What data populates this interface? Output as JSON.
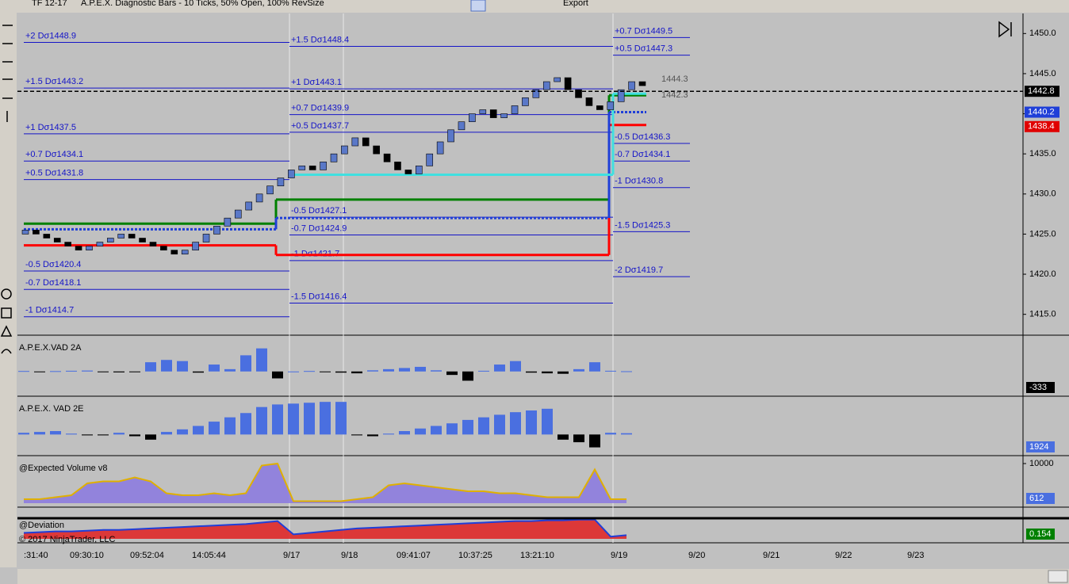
{
  "toolbar": {
    "instrument": "TF 12-17",
    "chart_title": "A.P.E.X. Diagnostic Bars - 10 Ticks, 50% Open, 100% RevSize",
    "export": "Export"
  },
  "chart_data": {
    "type": "renko",
    "ylim": [
      1412.4,
      1452.5
    ],
    "yticks": [
      {
        "value": 1450,
        "label": "1450.0"
      },
      {
        "value": 1445,
        "label": "1445.0"
      },
      {
        "value": 1440,
        "label": "1440.0"
      },
      {
        "value": 1435,
        "label": "1435.0"
      },
      {
        "value": 1430,
        "label": "1430.0"
      },
      {
        "value": 1425,
        "label": "1425.0"
      },
      {
        "value": 1420,
        "label": "1420.0"
      },
      {
        "value": 1415,
        "label": "1415.0"
      }
    ],
    "values": [
      1425.5,
      1425,
      1424.5,
      1424,
      1423.5,
      1423,
      1423.5,
      1424,
      1424.5,
      1425,
      1424.5,
      1424,
      1423.5,
      1423,
      1422.5,
      1423,
      1424,
      1425,
      1426,
      1427,
      1428,
      1429,
      1430,
      1431,
      1432,
      1433,
      1433.5,
      1433,
      1434,
      1435,
      1436,
      1437,
      1436,
      1435,
      1434,
      1433,
      1432.5,
      1433.5,
      1435,
      1436.5,
      1438,
      1439,
      1440,
      1440.5,
      1439.5,
      1440,
      1441,
      1442,
      1443,
      1444,
      1444.5,
      1443,
      1442,
      1441,
      1440.5,
      1441.5,
      1443,
      1444,
      1443.5
    ],
    "up_color": "#5a78c8",
    "down_color": "#000000",
    "level_color": "#1414c8",
    "levels": [
      [
        {
          "label": "+2 Dσ1448.9",
          "value": 1448.9
        },
        {
          "label": "+1.5 Dσ1443.2",
          "value": 1443.2
        },
        {
          "label": "+1 Dσ1437.5",
          "value": 1437.5
        },
        {
          "label": "+0.7 Dσ1434.1",
          "value": 1434.1
        },
        {
          "label": "+0.5 Dσ1431.8",
          "value": 1431.8
        },
        {
          "label": "-0.5 Dσ1420.4",
          "value": 1420.4
        },
        {
          "label": "-0.7 Dσ1418.1",
          "value": 1418.1
        },
        {
          "label": "-1 Dσ1414.7",
          "value": 1414.7
        }
      ],
      [
        {
          "label": "+1.5 Dσ1448.4",
          "value": 1448.4
        },
        {
          "label": "+1 Dσ1443.1",
          "value": 1443.1
        },
        {
          "label": "+0.7 Dσ1439.9",
          "value": 1439.9
        },
        {
          "label": "+0.5 Dσ1437.7",
          "value": 1437.7
        },
        {
          "label": "-0.5 Dσ1427.1",
          "value": 1427.1
        },
        {
          "label": "-0.7 Dσ1424.9",
          "value": 1424.9
        },
        {
          "label": "-1 Dσ1421.7",
          "value": 1421.7
        },
        {
          "label": "-1.5 Dσ1416.4",
          "value": 1416.4
        }
      ],
      [
        {
          "label": "+0.7 Dσ1449.5",
          "value": 1449.5
        },
        {
          "label": "+0.5 Dσ1447.3",
          "value": 1447.3
        },
        {
          "label": "-0.5 Dσ1436.3",
          "value": 1436.3
        },
        {
          "label": "-0.7 Dσ1434.1",
          "value": 1434.1
        },
        {
          "label": "-1 Dσ1430.8",
          "value": 1430.8
        },
        {
          "label": "-1.5 Dσ1425.3",
          "value": 1425.3
        },
        {
          "label": "-2 Dσ1419.7",
          "value": 1419.7
        }
      ]
    ],
    "bands": [
      {
        "color": "#008000",
        "values": [
          1426.3,
          1429.3,
          1442.3
        ]
      },
      {
        "color": "#ff0000",
        "values": [
          1423.6,
          1422.4,
          1438.6
        ]
      },
      {
        "color": "#1f3fd8",
        "dashed": true,
        "values": [
          1425.6,
          1427,
          1440.2
        ]
      },
      {
        "color": "#40e0e0",
        "values": [
          1432.4,
          1442.5
        ]
      }
    ],
    "price_labels": [
      {
        "value": 1442.8,
        "color": "#000000"
      },
      {
        "value": 1440.2,
        "color": "#1f3fd8"
      },
      {
        "value": 1438.4,
        "color": "#e00000"
      }
    ],
    "ghost_labels": [
      1444.3,
      1442.3
    ],
    "x_labels": [
      ":31:40",
      "09:30:10",
      "09:52:04",
      "14:05:44",
      "9/17",
      "9/18",
      "09:41:07",
      "10:37:25",
      "13:21:10",
      "9/19",
      "9/20",
      "9/21",
      "9/22",
      "9/23"
    ]
  },
  "panels": [
    {
      "title": "A.P.E.X.VAD 2A",
      "type": "histogram",
      "ylim": [
        -900,
        1400
      ],
      "readout": -333,
      "up_color": "#4a6fe0",
      "down_color": "#000000",
      "values": [
        20,
        -10,
        15,
        30,
        40,
        -30,
        -40,
        -25,
        400,
        500,
        450,
        -50,
        300,
        100,
        700,
        1000,
        -300,
        0,
        20,
        -20,
        -50,
        -80,
        50,
        100,
        150,
        200,
        50,
        -150,
        -400,
        30,
        300,
        450,
        -50,
        -80,
        -100,
        100,
        400,
        30,
        10
      ]
    },
    {
      "title": "A.P.E.X. VAD 2E",
      "type": "histogram",
      "ylim": [
        -200,
        400
      ],
      "readout": 1924,
      "up_color": "#4a6fe0",
      "down_color": "#000000",
      "values": [
        20,
        30,
        40,
        10,
        -10,
        -10,
        20,
        -20,
        -60,
        30,
        60,
        100,
        150,
        200,
        250,
        320,
        350,
        360,
        370,
        380,
        380,
        -10,
        -20,
        10,
        40,
        70,
        100,
        130,
        170,
        200,
        230,
        260,
        280,
        300,
        -60,
        -90,
        -150,
        20,
        15
      ]
    },
    {
      "title": "@Expected Volume v8",
      "type": "area",
      "ylim": [
        0,
        11000
      ],
      "yticks": [
        10000
      ],
      "readout": 612,
      "color": "#e0b000",
      "fill": "#8a78e0",
      "values": [
        1000,
        1000,
        1500,
        2000,
        5000,
        5500,
        5500,
        6500,
        5500,
        2500,
        2000,
        2000,
        2500,
        2000,
        2500,
        9500,
        10000,
        500,
        500,
        500,
        500,
        1000,
        1500,
        4500,
        5000,
        4500,
        4000,
        3500,
        3000,
        3000,
        2500,
        2500,
        2000,
        1500,
        1500,
        1500,
        8500,
        1000,
        1000
      ]
    },
    {
      "title": "@Deviation",
      "type": "area",
      "ylim": [
        0,
        0.3
      ],
      "readout": 0.154,
      "color": "#1f3fd8",
      "fill": "#e02020",
      "values": [
        0.08,
        0.09,
        0.1,
        0.1,
        0.11,
        0.12,
        0.12,
        0.13,
        0.14,
        0.15,
        0.16,
        0.17,
        0.18,
        0.19,
        0.2,
        0.22,
        0.24,
        0.06,
        0.08,
        0.1,
        0.12,
        0.14,
        0.15,
        0.16,
        0.17,
        0.18,
        0.19,
        0.2,
        0.21,
        0.22,
        0.23,
        0.24,
        0.24,
        0.25,
        0.25,
        0.26,
        0.26,
        0.03,
        0.05
      ]
    }
  ],
  "footer": "© 2017 NinjaTrader, LLC"
}
